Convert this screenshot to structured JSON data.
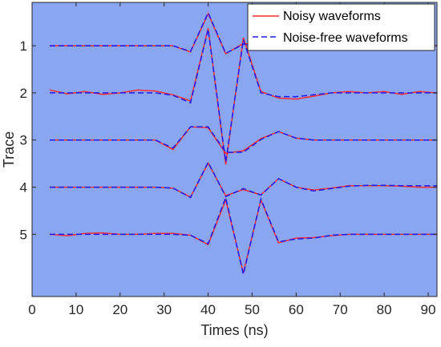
{
  "chart_data": {
    "type": "line",
    "title": "",
    "xlabel": "Times (ns)",
    "ylabel": "Trace",
    "xlim": [
      0,
      92
    ],
    "x_ticks": [
      0,
      10,
      20,
      30,
      40,
      50,
      60,
      70,
      80,
      90
    ],
    "y_ticks": [
      1,
      2,
      3,
      4,
      5
    ],
    "legend": {
      "placement": "top-right",
      "entries": [
        "Noisy waveforms",
        "Noise-free waveforms"
      ]
    },
    "colors": {
      "plot_background": "#8aa6f0",
      "noisy": "#ff2a2a",
      "noise_free": "#1a1aff",
      "axis": "#262626"
    },
    "x": [
      4,
      8,
      12,
      16,
      20,
      24,
      28,
      32,
      36,
      40,
      44,
      48,
      52,
      56,
      60,
      64,
      68,
      72,
      76,
      80,
      84,
      88,
      92
    ],
    "traces": [
      {
        "trace": 1,
        "noisy": [
          1,
          1,
          1,
          1,
          1,
          1,
          1,
          1,
          1.13,
          0.32,
          1.17,
          0.95,
          1.0,
          1.02,
          1.0,
          1.01,
          1.0,
          1.0,
          1.0,
          1.0,
          1.0,
          1.0,
          1.0
        ],
        "noise_free": [
          1,
          1,
          1,
          1,
          1,
          1,
          1,
          1,
          1.12,
          0.3,
          1.16,
          0.97,
          1.0,
          1.0,
          1.0,
          1.0,
          1.0,
          1.0,
          1.0,
          1.0,
          1.0,
          1.0,
          1.0
        ]
      },
      {
        "trace": 2,
        "noisy": [
          1.94,
          2.02,
          1.97,
          2.03,
          2.0,
          1.94,
          1.96,
          2.04,
          2.17,
          0.63,
          3.52,
          0.83,
          1.97,
          2.11,
          2.13,
          2.07,
          2.0,
          1.97,
          2.0,
          1.97,
          2.03,
          1.97,
          2.0
        ],
        "noise_free": [
          2,
          2,
          2,
          2,
          2,
          2,
          2,
          2.05,
          2.21,
          0.65,
          3.47,
          0.87,
          2.0,
          2.08,
          2.08,
          2.04,
          2.0,
          2.0,
          2.0,
          2.0,
          2.0,
          2.0,
          2.0
        ]
      },
      {
        "trace": 3,
        "noisy": [
          3,
          3,
          3,
          3,
          3,
          3,
          3,
          3.2,
          2.72,
          2.74,
          3.28,
          3.23,
          2.97,
          2.82,
          2.96,
          3.0,
          3.0,
          3.0,
          3.0,
          3.0,
          3.0,
          3.0,
          3.0
        ],
        "noise_free": [
          3,
          3,
          3,
          3,
          3,
          3,
          3,
          3.17,
          2.72,
          2.72,
          3.26,
          3.26,
          2.99,
          2.82,
          2.96,
          3.0,
          3.0,
          3.0,
          3.0,
          3.0,
          3.0,
          3.0,
          3.0
        ],
        "noise_free_note": "noise-free trace follows noisy trace closely"
      },
      {
        "trace": 4,
        "noisy": [
          4,
          4,
          4,
          4,
          4,
          4,
          4,
          4.02,
          4.21,
          3.49,
          4.18,
          4.05,
          4.16,
          3.82,
          4.0,
          4.06,
          4.02,
          3.97,
          3.97,
          3.97,
          3.98,
          4.0,
          4.0
        ],
        "noise_free": [
          4,
          4,
          4,
          4,
          4,
          4,
          4,
          4.02,
          4.22,
          3.47,
          4.2,
          4.03,
          4.17,
          3.82,
          4.0,
          4.08,
          4.03,
          3.98,
          3.96,
          3.96,
          3.97,
          3.97,
          3.97
        ]
      },
      {
        "trace": 5,
        "noisy": [
          5.0,
          5.03,
          4.98,
          4.97,
          5.0,
          5.0,
          4.98,
          4.98,
          5.02,
          5.22,
          4.27,
          5.82,
          4.27,
          5.18,
          5.08,
          5.07,
          5.03,
          5.0,
          5.0,
          5.0,
          5.0,
          5.0,
          5.0
        ],
        "noise_free": [
          5.0,
          5.0,
          5.0,
          5.0,
          5.0,
          5.0,
          5.0,
          5.0,
          5.02,
          5.2,
          4.22,
          5.85,
          4.25,
          5.16,
          5.1,
          5.08,
          5.02,
          5.0,
          5.0,
          5.0,
          5.0,
          5.0,
          5.0
        ]
      }
    ]
  }
}
